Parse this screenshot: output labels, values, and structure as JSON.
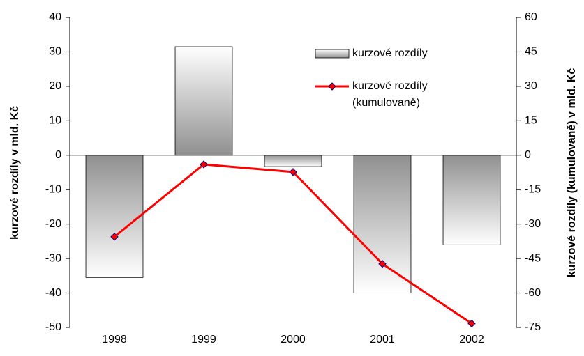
{
  "chart_data": {
    "type": "bar_line",
    "y_label": "kurzové rozdíly v mld. Kč",
    "y2_label": "kurzové rozdíly (kumulovaně) v mld. Kč",
    "categories": [
      "1998",
      "1999",
      "2000",
      "2001",
      "2002"
    ],
    "series": [
      {
        "name": "kurzové rozdíly",
        "type": "bar",
        "color": "#a0a0a0",
        "values": [
          -35.5,
          31.5,
          -3.3,
          -40,
          -26
        ]
      },
      {
        "name": "kurzové rozdíly (kumulovaně)",
        "type": "line",
        "axis": "y2",
        "color": "#ff0000",
        "values": [
          -35.5,
          -4,
          -7.3,
          -47.3,
          -73.3
        ]
      }
    ],
    "ylim": [
      -50,
      40
    ],
    "yticks": [
      -50,
      -40,
      -30,
      -20,
      -10,
      0,
      10,
      20,
      30,
      40
    ],
    "y2lim": [
      -75,
      60
    ],
    "y2ticks": [
      -75,
      -60,
      -45,
      -30,
      -15,
      0,
      15,
      30,
      45,
      60
    ],
    "grid": false
  }
}
